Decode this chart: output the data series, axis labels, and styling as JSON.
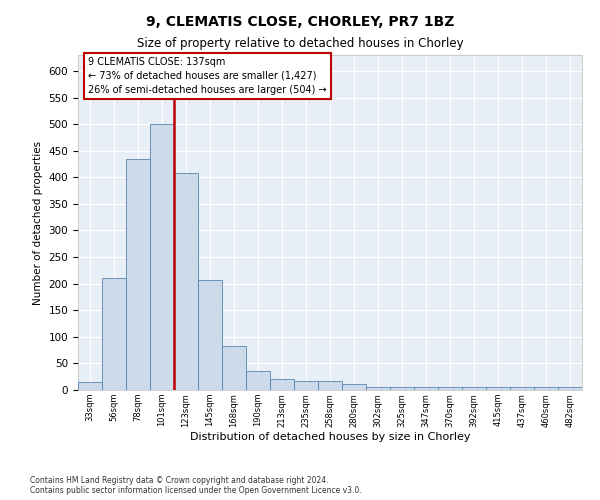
{
  "title1": "9, CLEMATIS CLOSE, CHORLEY, PR7 1BZ",
  "title2": "Size of property relative to detached houses in Chorley",
  "xlabel": "Distribution of detached houses by size in Chorley",
  "ylabel": "Number of detached properties",
  "bar_values": [
    15,
    210,
    435,
    500,
    408,
    207,
    83,
    36,
    20,
    17,
    17,
    11,
    5,
    5,
    5,
    5,
    5,
    5,
    5,
    5,
    5
  ],
  "bar_labels": [
    "33sqm",
    "56sqm",
    "78sqm",
    "101sqm",
    "123sqm",
    "145sqm",
    "168sqm",
    "190sqm",
    "213sqm",
    "235sqm",
    "258sqm",
    "280sqm",
    "302sqm",
    "325sqm",
    "347sqm",
    "370sqm",
    "392sqm",
    "415sqm",
    "437sqm",
    "460sqm",
    "482sqm"
  ],
  "bar_color": "#ccdaea",
  "bar_edge_color": "#5585b0",
  "vline_color": "#bb0000",
  "annotation_text": "9 CLEMATIS CLOSE: 137sqm\n← 73% of detached houses are smaller (1,427)\n26% of semi-detached houses are larger (504) →",
  "annotation_box_color": "#ffffff",
  "annotation_box_edge": "#bb0000",
  "ylim": [
    0,
    630
  ],
  "yticks": [
    0,
    50,
    100,
    150,
    200,
    250,
    300,
    350,
    400,
    450,
    500,
    550,
    600
  ],
  "footnote1": "Contains HM Land Registry data © Crown copyright and database right 2024.",
  "footnote2": "Contains public sector information licensed under the Open Government Licence v3.0.",
  "bg_color": "#e8eef5",
  "fig_color": "#ffffff"
}
